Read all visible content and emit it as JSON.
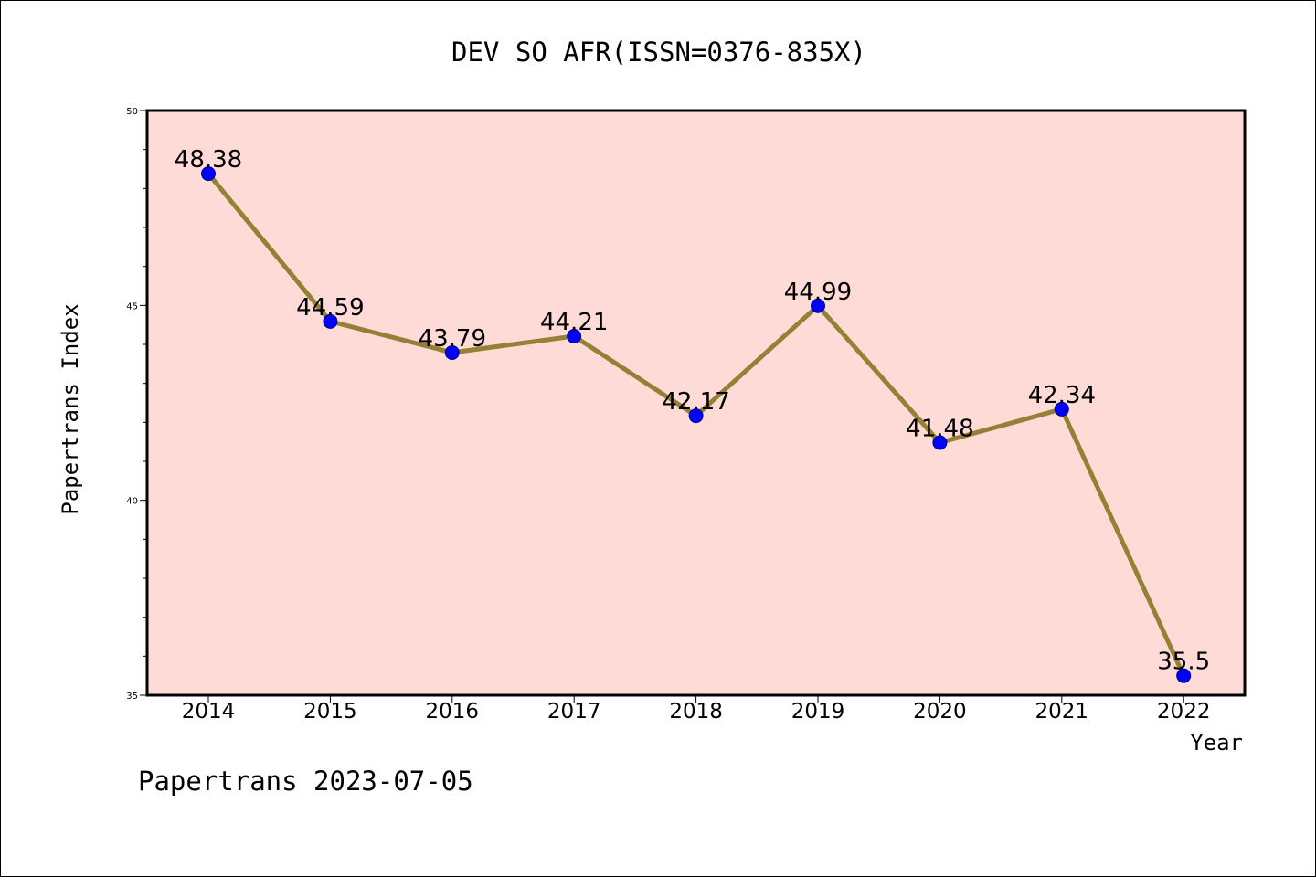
{
  "footer": "Papertrans 2023-07-05",
  "colors": {
    "plot_bg": "#ffdbd8",
    "line": "#948136",
    "marker": "#0000ff",
    "marker_edge": "#000080",
    "axis": "#000000"
  },
  "chart_data": {
    "type": "line",
    "title": "DEV SO AFR(ISSN=0376-835X)",
    "xlabel": "Year",
    "ylabel": "Papertrans Index",
    "categories": [
      "2014",
      "2015",
      "2016",
      "2017",
      "2018",
      "2019",
      "2020",
      "2021",
      "2022"
    ],
    "values": [
      48.38,
      44.59,
      43.79,
      44.21,
      42.17,
      44.99,
      41.48,
      42.34,
      35.5
    ],
    "point_labels": [
      "48.38",
      "44.59",
      "43.79",
      "44.21",
      "42.17",
      "44.99",
      "41.48",
      "42.34",
      "35.5"
    ],
    "ylim": [
      35,
      50
    ],
    "yticks": [
      "35",
      "40",
      "45",
      "50"
    ],
    "grid": false,
    "legend": "none"
  }
}
